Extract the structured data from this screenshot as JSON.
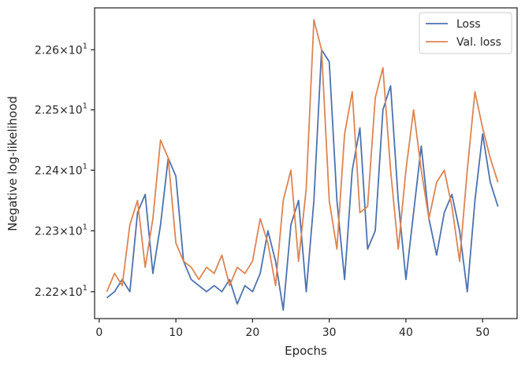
{
  "chart_data": {
    "type": "line",
    "xlabel": "Epochs",
    "ylabel": "Negative log-likelihood",
    "xlim": [
      -0.6,
      54.5
    ],
    "ylim": [
      22.156,
      22.67
    ],
    "yscale": "log",
    "grid": false,
    "legend_position": "top-right",
    "x_ticks": [
      0,
      10,
      20,
      30,
      40,
      50
    ],
    "x_tick_labels": [
      "0",
      "10",
      "20",
      "30",
      "40",
      "50"
    ],
    "y_ticks": [
      22.2,
      22.3,
      22.4,
      22.5,
      22.6
    ],
    "y_tick_labels": [
      {
        "base": "2.22×10",
        "exp": "1"
      },
      {
        "base": "2.23×10",
        "exp": "1"
      },
      {
        "base": "2.24×10",
        "exp": "1"
      },
      {
        "base": "2.25×10",
        "exp": "1"
      },
      {
        "base": "2.26×10",
        "exp": "1"
      }
    ],
    "x": [
      1,
      2,
      3,
      4,
      5,
      6,
      7,
      8,
      9,
      10,
      11,
      12,
      13,
      14,
      15,
      16,
      17,
      18,
      19,
      20,
      21,
      22,
      23,
      24,
      25,
      26,
      27,
      28,
      29,
      30,
      31,
      32,
      33,
      34,
      35,
      36,
      37,
      38,
      39,
      40,
      41,
      42,
      43,
      44,
      45,
      46,
      47,
      48,
      49,
      50,
      51,
      52
    ],
    "series": [
      {
        "name": "Loss",
        "color": "#4c72b0",
        "values": [
          22.19,
          22.2,
          22.22,
          22.2,
          22.33,
          22.36,
          22.23,
          22.31,
          22.42,
          22.39,
          22.25,
          22.22,
          22.21,
          22.2,
          22.21,
          22.2,
          22.22,
          22.18,
          22.21,
          22.2,
          22.23,
          22.3,
          22.25,
          22.17,
          22.31,
          22.35,
          22.2,
          22.35,
          22.6,
          22.58,
          22.35,
          22.22,
          22.4,
          22.47,
          22.27,
          22.3,
          22.5,
          22.54,
          22.35,
          22.22,
          22.33,
          22.44,
          22.32,
          22.26,
          22.33,
          22.36,
          22.3,
          22.2,
          22.35,
          22.46,
          22.38,
          22.34
        ]
      },
      {
        "name": "Val. loss",
        "color": "#dd8452",
        "values": [
          22.2,
          22.23,
          22.21,
          22.31,
          22.35,
          22.24,
          22.32,
          22.45,
          22.42,
          22.28,
          22.25,
          22.24,
          22.22,
          22.24,
          22.23,
          22.26,
          22.21,
          22.24,
          22.23,
          22.25,
          22.32,
          22.28,
          22.21,
          22.35,
          22.4,
          22.25,
          22.37,
          22.65,
          22.6,
          22.35,
          22.27,
          22.46,
          22.53,
          22.33,
          22.34,
          22.52,
          22.57,
          22.4,
          22.27,
          22.4,
          22.5,
          22.4,
          22.32,
          22.38,
          22.4,
          22.34,
          22.25,
          22.4,
          22.53,
          22.47,
          22.42,
          22.38
        ]
      }
    ]
  }
}
